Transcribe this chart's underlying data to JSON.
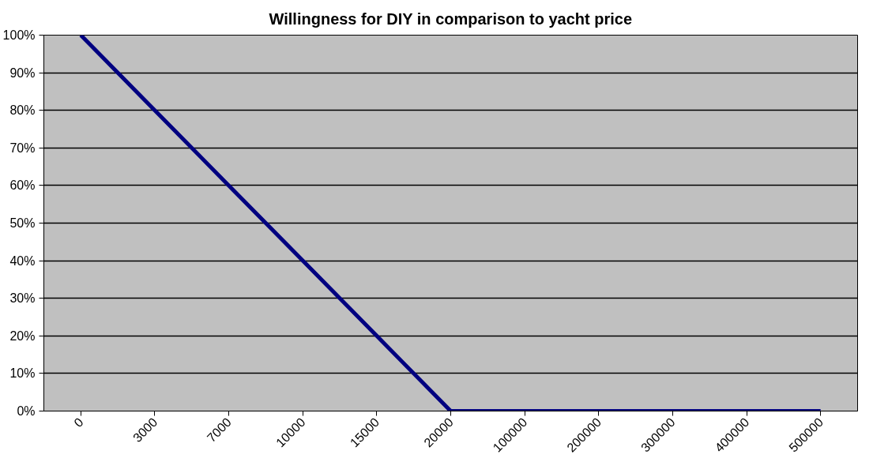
{
  "chart_data": {
    "type": "line",
    "title": "Willingness for DIY in comparison to yacht price",
    "categories": [
      "0",
      "3000",
      "7000",
      "10000",
      "15000",
      "20000",
      "100000",
      "200000",
      "300000",
      "400000",
      "500000"
    ],
    "series": [
      {
        "color": "#000080",
        "values": [
          100,
          80,
          60,
          40,
          20,
          0,
          0,
          0,
          0,
          0,
          0
        ]
      }
    ],
    "ylim": [
      0,
      100
    ],
    "yticks": [
      {
        "value": 0,
        "label": "0%"
      },
      {
        "value": 10,
        "label": "10%"
      },
      {
        "value": 20,
        "label": "20%"
      },
      {
        "value": 30,
        "label": "30%"
      },
      {
        "value": 40,
        "label": "40%"
      },
      {
        "value": 50,
        "label": "50%"
      },
      {
        "value": 60,
        "label": "60%"
      },
      {
        "value": 70,
        "label": "70%"
      },
      {
        "value": 80,
        "label": "80%"
      },
      {
        "value": 90,
        "label": "90%"
      },
      {
        "value": 100,
        "label": "100%"
      }
    ],
    "grid": "y",
    "marker": "none",
    "line_style": "solid"
  }
}
